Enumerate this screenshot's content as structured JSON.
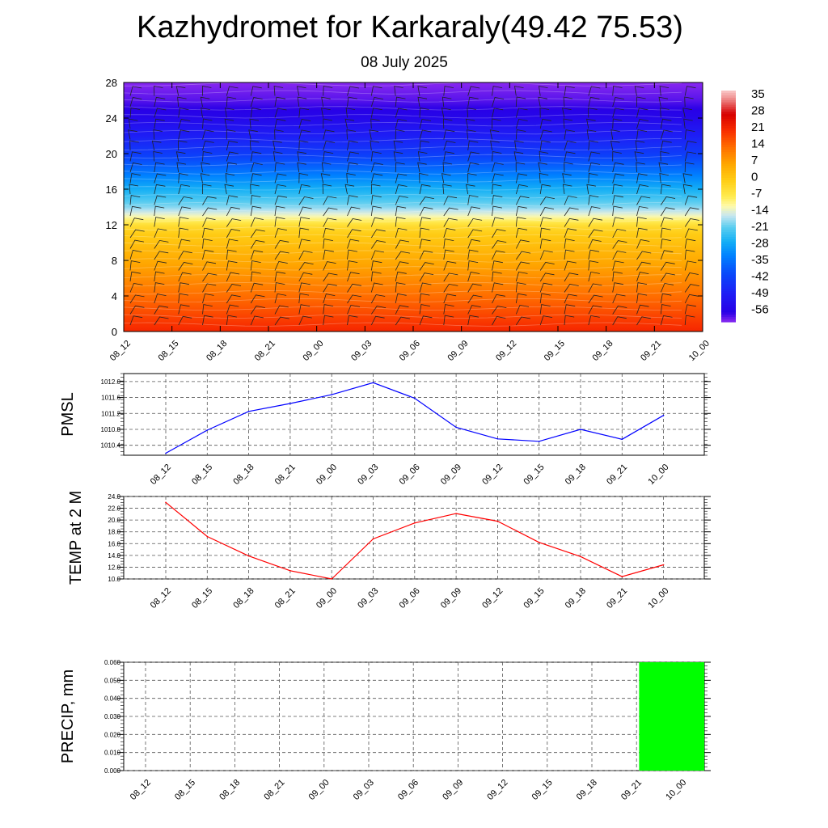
{
  "page": {
    "title": "Kazhydromet for Karkaraly(49.42 75.53)",
    "subtitle": "08 July 2025"
  },
  "chart_data": [
    {
      "type": "heatmap",
      "name": "temperature-cross-section",
      "x_ticks": [
        "08_12",
        "08_15",
        "08_18",
        "08_21",
        "09_00",
        "09_03",
        "09_06",
        "09_09",
        "09_12",
        "09_15",
        "09_18",
        "09_21",
        "10_00"
      ],
      "y_ticks": [
        0,
        4,
        8,
        12,
        16,
        20,
        24,
        28
      ],
      "ylim": [
        0,
        28
      ],
      "colorbar": {
        "labels": [
          35,
          28,
          21,
          14,
          7,
          0,
          -7,
          -14,
          -21,
          -28,
          -35,
          -42,
          -49,
          -56
        ],
        "range": [
          -60,
          38
        ]
      },
      "profile": {
        "level": [
          0,
          2,
          4,
          6,
          8,
          10,
          11,
          12,
          13,
          14,
          16,
          18,
          20,
          22,
          24,
          26,
          28
        ],
        "temp": [
          22,
          18,
          14,
          10,
          6,
          2,
          0,
          -4,
          -12,
          -18,
          -26,
          -34,
          -42,
          -48,
          -54,
          -58,
          -60
        ]
      },
      "wind_barbs": true
    },
    {
      "type": "line",
      "name": "pmsl",
      "ylabel": "PMSL",
      "categories": [
        "08_12",
        "08_15",
        "08_18",
        "08_21",
        "09_00",
        "09_03",
        "09_06",
        "09_09",
        "09_12",
        "09_15",
        "09_18",
        "09_21",
        "10_00"
      ],
      "y_ticks": [
        "1010.4",
        "1010.8",
        "1011.2",
        "1011.6",
        "1012.0"
      ],
      "ylim": [
        1010.15,
        1012.2
      ],
      "series": [
        {
          "values": [
            1010.2,
            1010.78,
            1011.25,
            1011.45,
            1011.67,
            1011.97,
            1011.58,
            1010.85,
            1010.56,
            1010.5,
            1010.8,
            1010.55,
            1011.15
          ],
          "color": "#0000ff"
        }
      ]
    },
    {
      "type": "line",
      "name": "temp2m",
      "ylabel": "TEMP at 2 M",
      "categories": [
        "08_12",
        "08_15",
        "08_18",
        "08_21",
        "09_00",
        "09_03",
        "09_06",
        "09_09",
        "09_12",
        "09_15",
        "09_18",
        "09_21",
        "10_00"
      ],
      "y_ticks": [
        "10.0",
        "12.0",
        "14.0",
        "16.0",
        "18.0",
        "20.0",
        "22.0",
        "24.0"
      ],
      "ylim": [
        10,
        24
      ],
      "series": [
        {
          "values": [
            23.0,
            17.2,
            13.9,
            11.4,
            10.0,
            16.8,
            19.5,
            21.1,
            19.8,
            16.2,
            13.8,
            10.4,
            12.4
          ],
          "color": "#ff0000"
        }
      ]
    },
    {
      "type": "bar",
      "name": "precip",
      "ylabel": "PRECIP, mm",
      "categories": [
        "08_12",
        "08_15",
        "08_18",
        "08_21",
        "09_00",
        "09_03",
        "09_06",
        "09_09",
        "09_12",
        "09_15",
        "09_18",
        "09_21",
        "10_00"
      ],
      "y_ticks": [
        "0.000",
        "0.010",
        "0.020",
        "0.030",
        "0.040",
        "0.050",
        "0.060"
      ],
      "ylim": [
        0,
        0.06
      ],
      "values": [
        0,
        0,
        0,
        0,
        0,
        0,
        0,
        0,
        0,
        0,
        0,
        0,
        0.06
      ],
      "color": "#00ff00"
    }
  ]
}
